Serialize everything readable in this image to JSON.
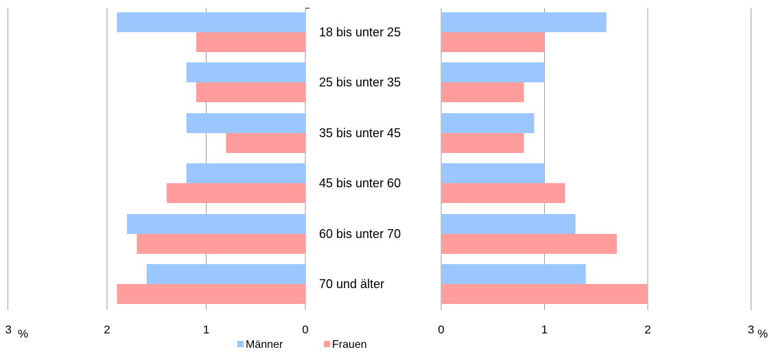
{
  "chart_data": {
    "type": "bar",
    "orientation": "horizontal",
    "layout": "mirrored-panels",
    "categories": [
      "18 bis unter 25",
      "25 bis unter 35",
      "35 bis unter 45",
      "45 bis unter 60",
      "60 bis unter 70",
      "70 und älter"
    ],
    "panels": [
      {
        "side": "left",
        "xlim": [
          0,
          3
        ],
        "direction": "reversed",
        "ticks": [
          "3",
          "2",
          "1",
          "0"
        ],
        "unit_label": "%",
        "series": [
          {
            "name": "Männer",
            "values": [
              1.9,
              1.2,
              1.2,
              1.2,
              1.8,
              1.6
            ]
          },
          {
            "name": "Frauen",
            "values": [
              1.1,
              1.1,
              0.8,
              1.4,
              1.7,
              1.9
            ]
          }
        ]
      },
      {
        "side": "right",
        "xlim": [
          0,
          3
        ],
        "direction": "normal",
        "ticks": [
          "0",
          "1",
          "2",
          "3"
        ],
        "unit_label": "%",
        "series": [
          {
            "name": "Männer",
            "values": [
              1.6,
              1.0,
              0.9,
              1.0,
              1.3,
              1.4
            ]
          },
          {
            "name": "Frauen",
            "values": [
              1.0,
              0.8,
              0.8,
              1.2,
              1.7,
              2.0
            ]
          }
        ]
      }
    ],
    "legend": {
      "position": "bottom",
      "entries": [
        "Männer",
        "Frauen"
      ]
    },
    "colors": {
      "Männer": "#9cc6ff",
      "Frauen": "#ff9c9c",
      "grid": "#999999"
    },
    "grid": true
  }
}
